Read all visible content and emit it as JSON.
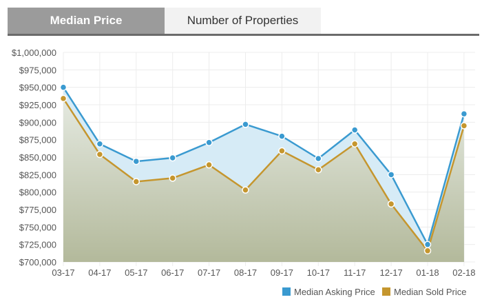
{
  "tabs": [
    {
      "label": "Median Price",
      "active": true
    },
    {
      "label": "Number of Properties",
      "active": false
    }
  ],
  "colors": {
    "asking": "#3a9ad0",
    "sold": "#c5962e",
    "sold_fill_top": "#dde3d8",
    "sold_fill_bottom": "#b5bb9e",
    "asking_fill": "#d6ebf6"
  },
  "chart_data": {
    "type": "area",
    "categories": [
      "03-17",
      "04-17",
      "05-17",
      "06-17",
      "07-17",
      "08-17",
      "09-17",
      "10-17",
      "11-17",
      "12-17",
      "01-18",
      "02-18"
    ],
    "series": [
      {
        "name": "Median Asking Price",
        "values": [
          950000,
          869000,
          844000,
          849000,
          871000,
          897000,
          880000,
          848000,
          889000,
          825000,
          725000,
          912000
        ]
      },
      {
        "name": "Median Sold Price",
        "values": [
          934000,
          854000,
          815000,
          820000,
          839000,
          803000,
          859000,
          832000,
          869000,
          783000,
          716000,
          895000
        ]
      }
    ],
    "yticks": [
      "$700,000",
      "$725,000",
      "$750,000",
      "$775,000",
      "$800,000",
      "$825,000",
      "$850,000",
      "$875,000",
      "$900,000",
      "$925,000",
      "$950,000",
      "$975,000",
      "$1,000,000"
    ],
    "ylim": [
      700000,
      1000000
    ],
    "grid": true,
    "legend": "bottom-right"
  }
}
